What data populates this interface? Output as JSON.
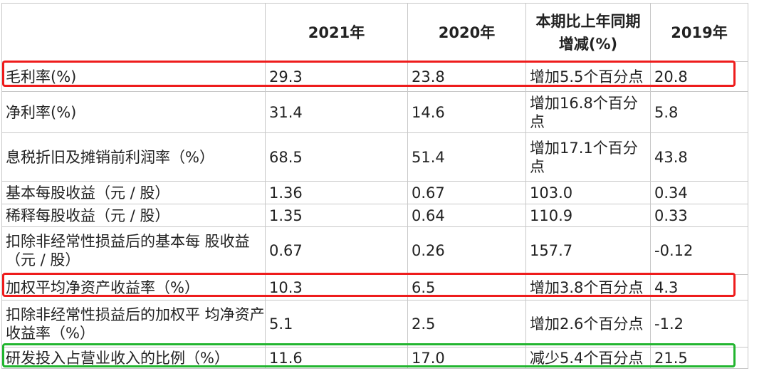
{
  "table": {
    "headers": [
      "",
      "2021年",
      "2020年",
      "本期比上年同期增减(%)",
      "2019年"
    ],
    "rows": [
      {
        "label": "毛利率(%)",
        "y2021": "29.3",
        "y2020": "23.8",
        "change": "增加5.5个百分点",
        "y2019": "20.8"
      },
      {
        "label": "净利率(%)",
        "y2021": "31.4",
        "y2020": "14.6",
        "change": "增加16.8个百分点",
        "y2019": "5.8"
      },
      {
        "label": "息税折旧及摊销前利润率（%）",
        "y2021": "68.5",
        "y2020": "51.4",
        "change": "增加17.1个百分点",
        "y2019": "43.8"
      },
      {
        "label": "基本每股收益（元 / 股）",
        "y2021": "1.36",
        "y2020": "0.67",
        "change": "103.0",
        "y2019": "0.34"
      },
      {
        "label": "稀释每股收益（元 / 股）",
        "y2021": "1.35",
        "y2020": "0.64",
        "change": "110.9",
        "y2019": "0.33"
      },
      {
        "label": "扣除非经常性损益后的基本每 股收益（元 / 股）",
        "y2021": "0.67",
        "y2020": "0.26",
        "change": "157.7",
        "y2019": "-0.12"
      },
      {
        "label": "加权平均净资产收益率（%）",
        "y2021": "10.3",
        "y2020": "6.5",
        "change": "增加3.8个百分点",
        "y2019": "4.3"
      },
      {
        "label": "扣除非经常性损益后的加权平 均净资产收益率（%）",
        "y2021": "5.1",
        "y2020": "2.5",
        "change": "增加2.6个百分点",
        "y2019": "-1.2"
      },
      {
        "label": "研发投入占营业收入的比例（%）",
        "y2021": "11.6",
        "y2020": "17.0",
        "change": "减少5.4个百分点",
        "y2019": "21.5"
      }
    ]
  },
  "highlights": {
    "red_color": "#ee1c1c",
    "green_color": "#22b52f"
  }
}
